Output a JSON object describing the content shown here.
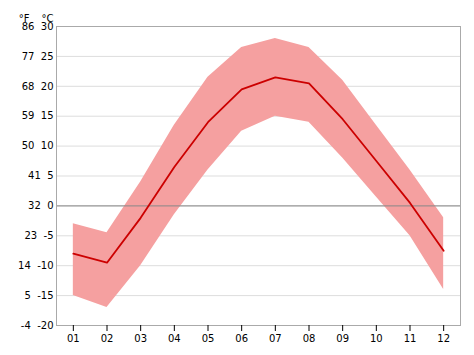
{
  "chart_data": {
    "type": "line",
    "x": [
      1,
      2,
      3,
      4,
      5,
      6,
      7,
      8,
      9,
      10,
      11,
      12
    ],
    "xlim": [
      0.5,
      12.5
    ],
    "xticks": [
      {
        "value": 1,
        "label": "01"
      },
      {
        "value": 2,
        "label": "02"
      },
      {
        "value": 3,
        "label": "03"
      },
      {
        "value": 4,
        "label": "04"
      },
      {
        "value": 5,
        "label": "05"
      },
      {
        "value": 6,
        "label": "06"
      },
      {
        "value": 7,
        "label": "07"
      },
      {
        "value": 8,
        "label": "08"
      },
      {
        "value": 9,
        "label": "09"
      },
      {
        "value": 10,
        "label": "10"
      },
      {
        "value": 11,
        "label": "11"
      },
      {
        "value": 12,
        "label": "12"
      }
    ],
    "ylim": [
      -20,
      30
    ],
    "yticks": [
      {
        "value": -20,
        "label": "-4  -20"
      },
      {
        "value": -15,
        "label": "5  -15"
      },
      {
        "value": -10,
        "label": "14  -10"
      },
      {
        "value": -5,
        "label": "23  -5"
      },
      {
        "value": 0,
        "label": "32  0"
      },
      {
        "value": 5,
        "label": "41  5"
      },
      {
        "value": 10,
        "label": "50  10"
      },
      {
        "value": 15,
        "label": "59  15"
      },
      {
        "value": 20,
        "label": "68  20"
      },
      {
        "value": 25,
        "label": "77  25"
      },
      {
        "value": 30,
        "label": "86  30"
      }
    ],
    "grid": true,
    "series": [
      {
        "type": "area",
        "color": "#f5a0a0",
        "low": [
          -15.0,
          -17.0,
          -10.0,
          -1.5,
          6.0,
          12.5,
          15.0,
          14.0,
          8.0,
          1.5,
          -5.0,
          -14.0
        ],
        "high": [
          -3.0,
          -4.5,
          4.0,
          13.5,
          21.5,
          26.5,
          28.0,
          26.5,
          21.0,
          13.5,
          6.0,
          -2.0
        ]
      },
      {
        "type": "line",
        "color": "#cc0000",
        "values": [
          -8.0,
          -9.5,
          -2.0,
          6.5,
          14.0,
          19.5,
          21.5,
          20.5,
          14.5,
          7.5,
          0.5,
          -7.5
        ]
      }
    ],
    "hlines": [
      {
        "y": 0,
        "color": "#888888"
      }
    ],
    "annotations": [
      {
        "text": "°F"
      },
      {
        "text": "°C"
      }
    ]
  }
}
